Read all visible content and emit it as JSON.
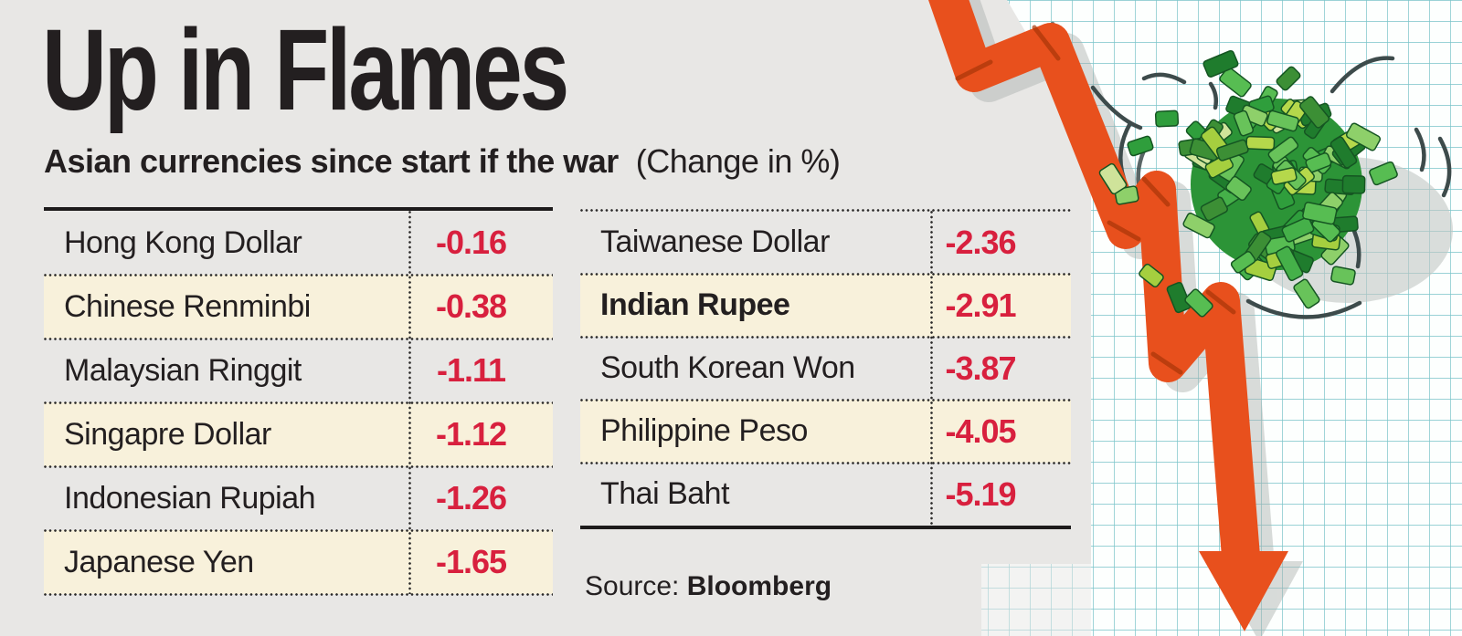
{
  "header": {
    "title": "Up in Flames",
    "subtitle_bold": "Asian currencies since start if the war",
    "subtitle_note": "(Change in %)"
  },
  "tables": {
    "left": {
      "rows": [
        {
          "name": "Hong Kong Dollar",
          "value": "-0.16",
          "highlight": false,
          "bold": false
        },
        {
          "name": "Chinese Renminbi",
          "value": "-0.38",
          "highlight": true,
          "bold": false
        },
        {
          "name": "Malaysian Ringgit",
          "value": "-1.11",
          "highlight": false,
          "bold": false
        },
        {
          "name": "Singapre Dollar",
          "value": "-1.12",
          "highlight": true,
          "bold": false
        },
        {
          "name": "Indonesian Rupiah",
          "value": "-1.26",
          "highlight": false,
          "bold": false
        },
        {
          "name": "Japanese Yen",
          "value": "-1.65",
          "highlight": true,
          "bold": false
        }
      ]
    },
    "right": {
      "rows": [
        {
          "name": "Taiwanese Dollar",
          "value": "-2.36",
          "highlight": false,
          "bold": false
        },
        {
          "name": "Indian Rupee",
          "value": "-2.91",
          "highlight": true,
          "bold": true
        },
        {
          "name": "South Korean Won",
          "value": "-3.87",
          "highlight": false,
          "bold": false
        },
        {
          "name": "Philippine Peso",
          "value": "-4.05",
          "highlight": true,
          "bold": false
        },
        {
          "name": "Thai Baht",
          "value": "-5.19",
          "highlight": false,
          "bold": false
        }
      ]
    }
  },
  "source": {
    "label": "Source:",
    "value": "Bloomberg"
  },
  "colors": {
    "bg_gray": "#e8e7e5",
    "text_black": "#231f20",
    "accent_red": "#d8203e",
    "row_cream": "#f8f1db",
    "line_black": "#1d1b1b",
    "arrow_orange": "#e8501d",
    "arrow_shade": "#a93608",
    "grid_teal": "#79c3c9",
    "paper_white": "#fdfffe",
    "money_green": "#2c9437",
    "swoosh_dark": "#3d4b4b",
    "note_greens": [
      "#2f9e3c",
      "#45b049",
      "#68c35a",
      "#8ed06a",
      "#b5d84b",
      "#cfe39a",
      "#3c8f35",
      "#57bd52",
      "#a5cf3f",
      "#1f7c2d"
    ]
  },
  "chart_data": {
    "type": "table",
    "title": "Up in Flames",
    "subtitle": "Asian currencies since start if the war (Change in %)",
    "categories": [
      "Hong Kong Dollar",
      "Chinese Renminbi",
      "Malaysian Ringgit",
      "Singapre Dollar",
      "Indonesian Rupiah",
      "Japanese Yen",
      "Taiwanese Dollar",
      "Indian Rupee",
      "South Korean Won",
      "Philippine Peso",
      "Thai Baht"
    ],
    "values": [
      -0.16,
      -0.38,
      -1.11,
      -1.12,
      -1.26,
      -1.65,
      -2.36,
      -2.91,
      -3.87,
      -4.05,
      -5.19
    ],
    "highlighted_category": "Indian Rupee",
    "unit": "percent change",
    "source": "Bloomberg"
  }
}
